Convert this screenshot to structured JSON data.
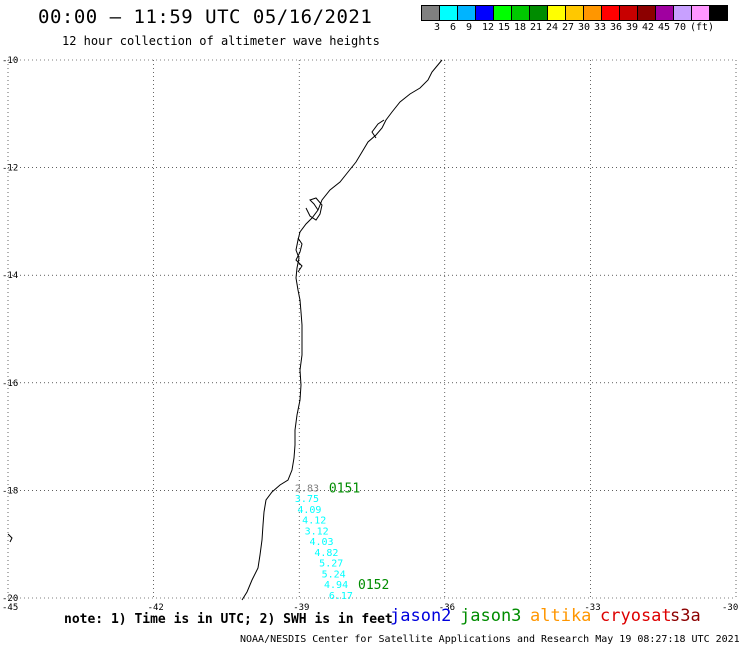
{
  "title": "00:00 – 11:59 UTC 05/16/2021",
  "subtitle": "12 hour collection of altimeter wave heights",
  "legend": {
    "colors": [
      "#808080",
      "#00ffff",
      "#00b4ff",
      "#0000ff",
      "#00ff00",
      "#00c800",
      "#008c00",
      "#ffff00",
      "#ffc800",
      "#ff9600",
      "#ff0000",
      "#c80000",
      "#8c0000",
      "#a000a0",
      "#c8a0ff",
      "#ff96ff",
      "#000000"
    ],
    "labels": [
      "3",
      "6",
      "9",
      "12",
      "15",
      "18",
      "21",
      "24",
      "27",
      "30",
      "33",
      "36",
      "39",
      "42",
      "45",
      "70",
      "(ft)"
    ]
  },
  "map": {
    "lat_ticks": [
      "-10",
      "-12",
      "-14",
      "-16",
      "-18",
      "-20"
    ],
    "lon_ticks": [
      "-45",
      "-42",
      "-39",
      "-36",
      "-33",
      "-30"
    ]
  },
  "chart_data": {
    "type": "scatter",
    "xlabel": "",
    "ylabel": "",
    "xlim": [
      -45,
      -30
    ],
    "ylim": [
      -20,
      -10
    ],
    "grid": true,
    "series": [
      {
        "satellite": "jason3",
        "passes": [
          "0151",
          "0152"
        ],
        "points": [
          {
            "lon": -38.8,
            "lat": -18.0,
            "swh": "2.83",
            "color": "#808080"
          },
          {
            "lon": -38.8,
            "lat": -18.2,
            "swh": "3.75",
            "color": "#00ffff"
          },
          {
            "lon": -38.75,
            "lat": -18.4,
            "swh": "4.09",
            "color": "#00ffff"
          },
          {
            "lon": -38.65,
            "lat": -18.6,
            "swh": "4.12",
            "color": "#00ffff"
          },
          {
            "lon": -38.6,
            "lat": -18.8,
            "swh": "3.12",
            "color": "#00ffff"
          },
          {
            "lon": -38.5,
            "lat": -19.0,
            "swh": "4.03",
            "color": "#00ffff"
          },
          {
            "lon": -38.4,
            "lat": -19.2,
            "swh": "4.82",
            "color": "#00ffff"
          },
          {
            "lon": -38.3,
            "lat": -19.4,
            "swh": "5.27",
            "color": "#00ffff"
          },
          {
            "lon": -38.25,
            "lat": -19.6,
            "swh": "5.24",
            "color": "#00ffff"
          },
          {
            "lon": -38.2,
            "lat": -19.8,
            "swh": "4.94",
            "color": "#00ffff"
          },
          {
            "lon": -38.1,
            "lat": -20.0,
            "swh": "6.17",
            "color": "#00ffff"
          }
        ]
      }
    ]
  },
  "note": "note: 1) Time is in UTC; 2) SWH is in feet",
  "satellites": [
    {
      "name": "jason2",
      "color": "#0000dd"
    },
    {
      "name": "jason3",
      "color": "#008c00"
    },
    {
      "name": "altika",
      "color": "#ff9600"
    },
    {
      "name": "cryosat",
      "color": "#dd0000"
    },
    {
      "name": "s3a",
      "color": "#8c0000"
    }
  ],
  "credits": "NOAA/NESDIS Center for Satellite Applications and Research     May 19 08:27:18 UTC 2021"
}
